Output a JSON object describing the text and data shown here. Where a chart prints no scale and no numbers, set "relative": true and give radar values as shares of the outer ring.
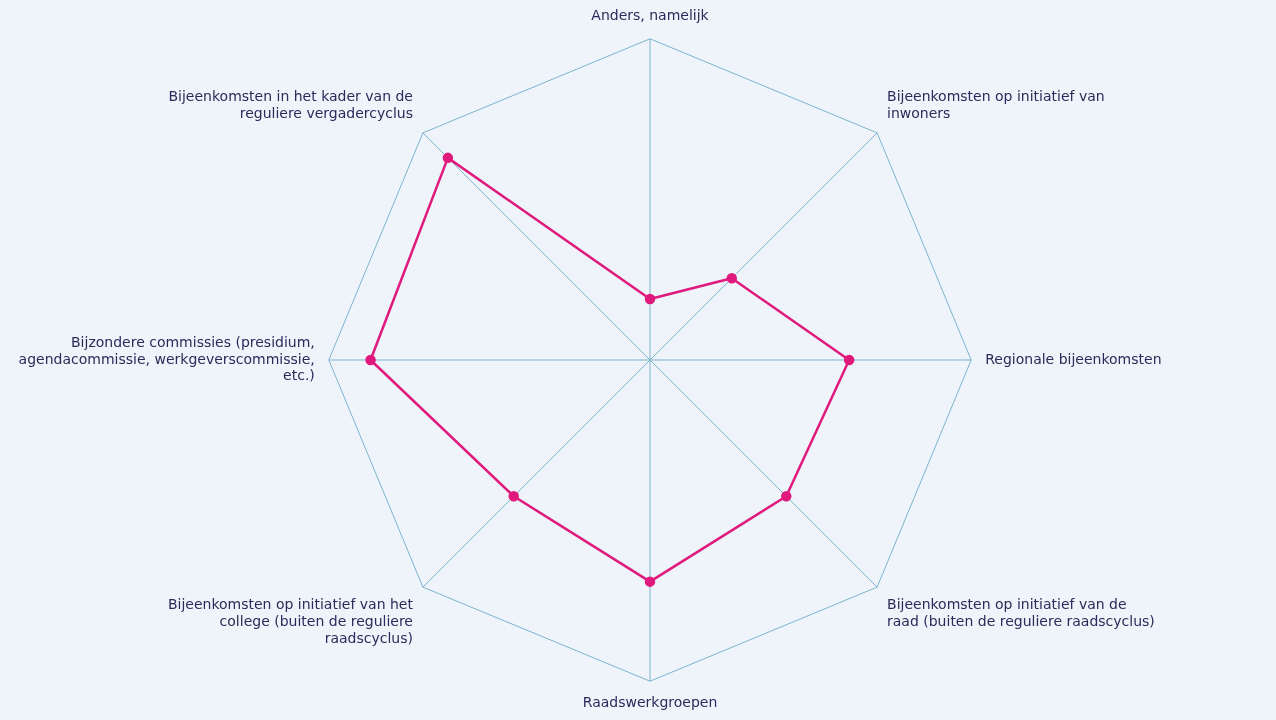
{
  "chart_data": {
    "type": "radar",
    "relative": true,
    "categories": [
      "Anders, namelijk",
      "Bijeenkomsten op initiatief van inwoners",
      "Regionale bijeenkomsten",
      "Bijeenkomsten op initiatief van de raad (buiten de reguliere raadscyclus)",
      "Raadswerkgroepen",
      "Bijeenkomsten op initiatief van het college (buiten de reguliere raadscyclus)",
      "Bijzondere commissies (presidium, agendacommissie, werkgeverscommissie, etc.)",
      "Bijeenkomsten in het kader van de reguliere vergadercyclus"
    ],
    "series": [
      {
        "color": "#e0197d",
        "values": [
          0.19,
          0.36,
          0.62,
          0.6,
          0.69,
          0.6,
          0.87,
          0.89
        ]
      }
    ]
  }
}
